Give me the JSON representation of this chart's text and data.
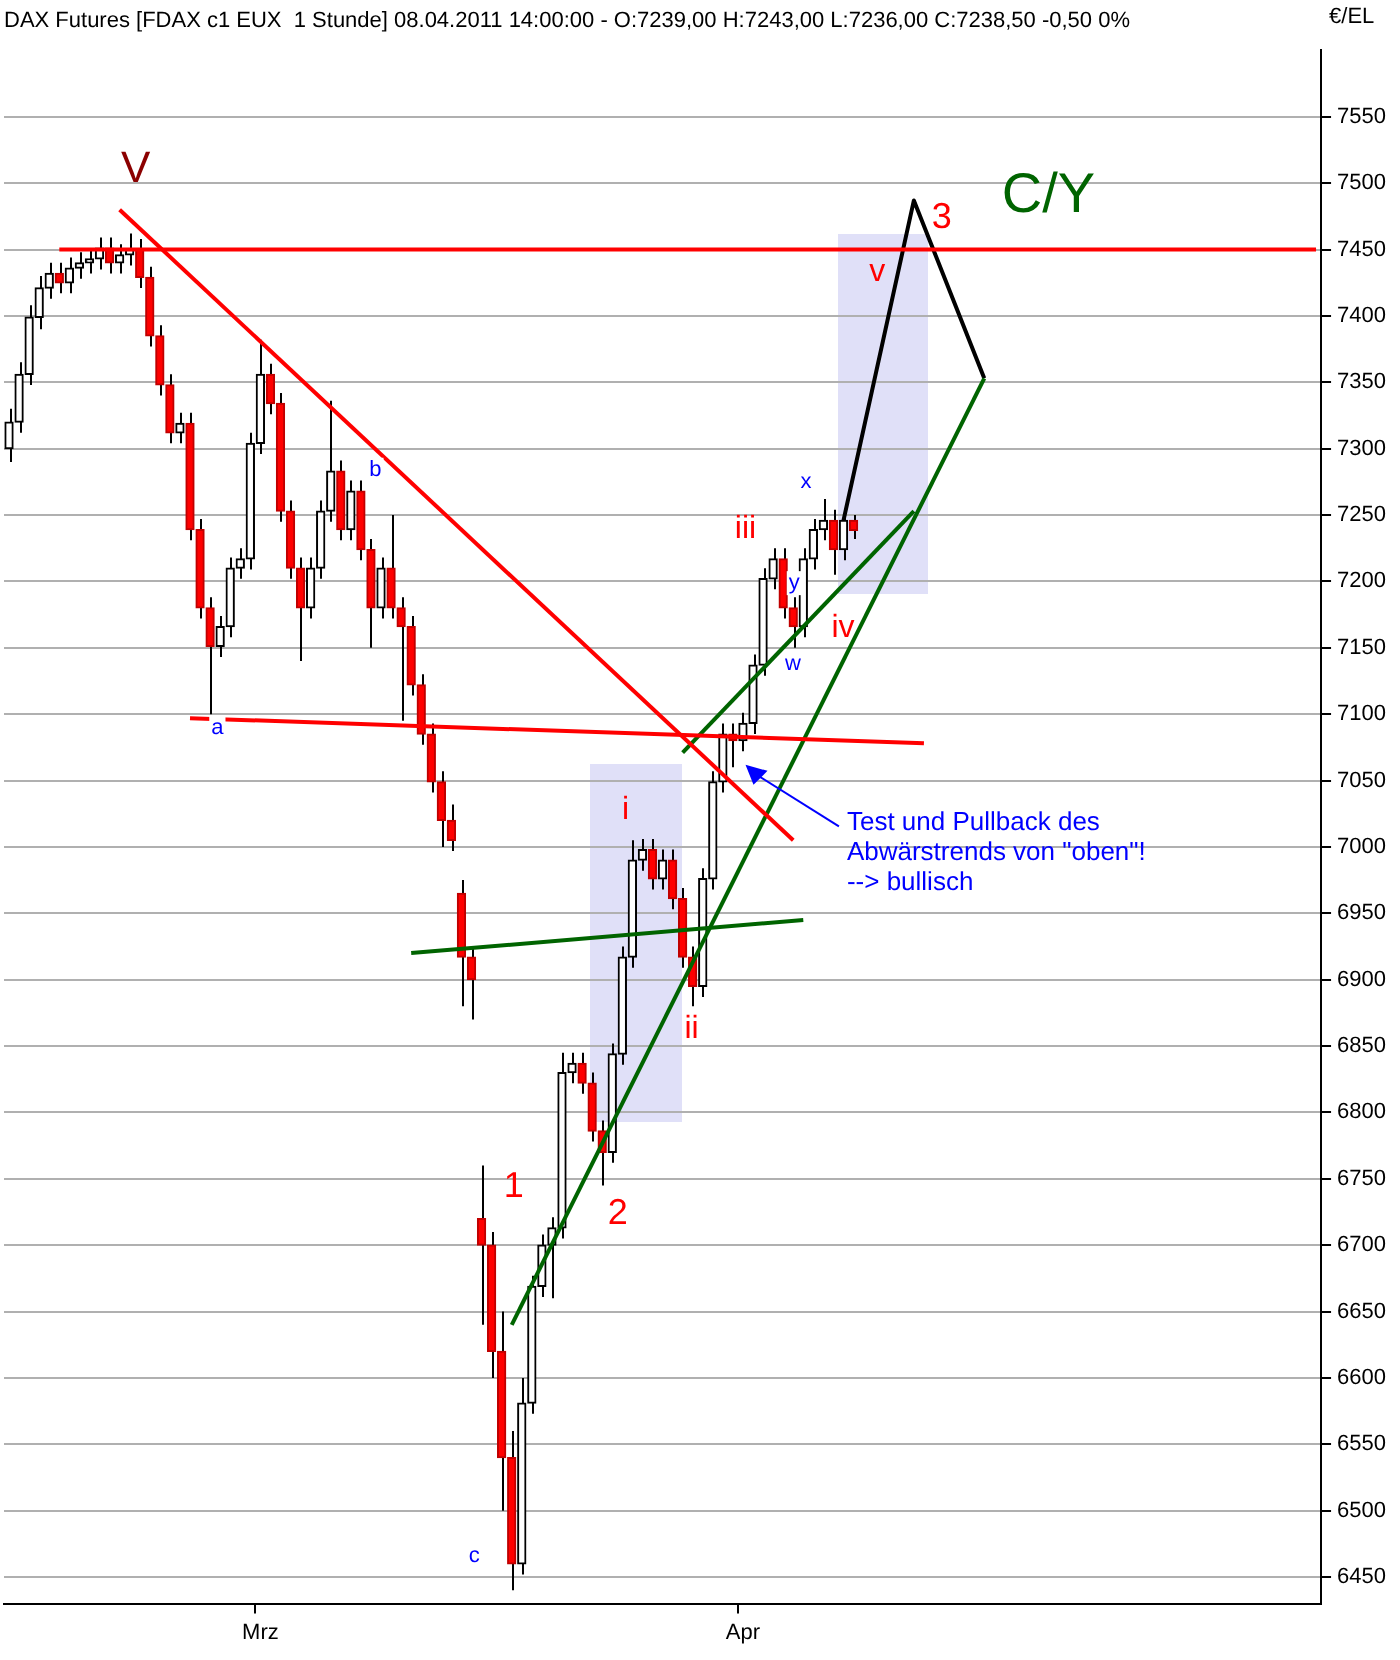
{
  "chart_data": {
    "type": "candlestick",
    "title": "DAX Futures [FDAX c1 EUX  1 Stunde] 08.04.2011 14:00:00 - O:7239,00 H:7243,00 L:7236,00 C:7238,50 -0,50 0%",
    "ylabel": "€/EL",
    "categories": [
      null,
      null,
      null,
      null,
      null,
      null,
      null,
      null,
      null,
      null,
      null,
      null,
      null,
      null,
      null,
      null,
      null,
      null,
      null,
      null,
      null,
      null,
      null,
      null,
      null,
      "Mrz",
      null,
      null,
      null,
      null,
      null,
      null,
      null,
      null,
      null,
      null,
      null,
      null,
      null,
      null,
      null,
      null,
      null,
      null,
      null,
      null,
      null,
      null,
      null,
      null,
      null,
      null,
      null,
      null,
      null,
      null,
      null,
      null,
      null,
      null,
      null,
      null,
      null,
      null,
      null,
      null,
      null,
      null,
      null,
      null,
      null,
      null,
      null,
      "Apr",
      null,
      null,
      null,
      null,
      null,
      null,
      null,
      null,
      null,
      null,
      null,
      null,
      null,
      null,
      null,
      null,
      null,
      null,
      null,
      null,
      null,
      null,
      null,
      null,
      null,
      null,
      null,
      null,
      null,
      null,
      null,
      null,
      null,
      null,
      null,
      null,
      null,
      null,
      null,
      null,
      null,
      null,
      null,
      null,
      null,
      null,
      null,
      null,
      null,
      null,
      null,
      null,
      null,
      null,
      null,
      null,
      null
    ],
    "ohlc": [
      [
        7300,
        7330,
        7290,
        7320
      ],
      [
        7320,
        7365,
        7312,
        7356
      ],
      [
        7356,
        7408,
        7348,
        7399
      ],
      [
        7399,
        7430,
        7390,
        7421
      ],
      [
        7421,
        7440,
        7413,
        7432
      ],
      [
        7432,
        7440,
        7417,
        7425
      ],
      [
        7425,
        7444,
        7417,
        7436
      ],
      [
        7436,
        7448,
        7428,
        7440
      ],
      [
        7440,
        7451,
        7432,
        7443
      ],
      [
        7443,
        7459,
        7435,
        7451
      ],
      [
        7451,
        7459,
        7432,
        7440
      ],
      [
        7440,
        7454,
        7432,
        7446
      ],
      [
        7446,
        7462,
        7438,
        7450
      ],
      [
        7450,
        7458,
        7421,
        7429
      ],
      [
        7429,
        7437,
        7377,
        7385
      ],
      [
        7385,
        7393,
        7340,
        7348
      ],
      [
        7348,
        7356,
        7304,
        7312
      ],
      [
        7312,
        7327,
        7304,
        7319
      ],
      [
        7319,
        7327,
        7231,
        7239
      ],
      [
        7239,
        7247,
        7172,
        7180
      ],
      [
        7180,
        7188,
        7100,
        7151
      ],
      [
        7151,
        7174,
        7143,
        7166
      ],
      [
        7166,
        7218,
        7158,
        7210
      ],
      [
        7210,
        7225,
        7202,
        7217
      ],
      [
        7217,
        7312,
        7209,
        7304
      ],
      [
        7304,
        7382,
        7296,
        7356
      ],
      [
        7356,
        7364,
        7326,
        7334
      ],
      [
        7334,
        7342,
        7245,
        7253
      ],
      [
        7253,
        7261,
        7202,
        7210
      ],
      [
        7210,
        7218,
        7140,
        7180
      ],
      [
        7180,
        7218,
        7172,
        7210
      ],
      [
        7210,
        7261,
        7202,
        7253
      ],
      [
        7253,
        7336,
        7245,
        7283
      ],
      [
        7283,
        7291,
        7231,
        7239
      ],
      [
        7239,
        7276,
        7231,
        7268
      ],
      [
        7268,
        7276,
        7216,
        7224
      ],
      [
        7224,
        7232,
        7150,
        7180
      ],
      [
        7180,
        7218,
        7172,
        7210
      ],
      [
        7210,
        7250,
        7172,
        7180
      ],
      [
        7180,
        7188,
        7095,
        7166
      ],
      [
        7166,
        7174,
        7114,
        7122
      ],
      [
        7122,
        7130,
        7077,
        7085
      ],
      [
        7085,
        7093,
        7041,
        7049
      ],
      [
        7049,
        7057,
        7000,
        7020
      ],
      [
        7020,
        7032,
        6997,
        7005
      ],
      [
        6965,
        6975,
        6880,
        6917
      ],
      [
        6917,
        6925,
        6870,
        6900
      ],
      [
        6720,
        6760,
        6640,
        6700
      ],
      [
        6700,
        6710,
        6600,
        6620
      ],
      [
        6620,
        6650,
        6500,
        6540
      ],
      [
        6540,
        6560,
        6440,
        6460
      ],
      [
        6460,
        6600,
        6452,
        6581
      ],
      [
        6581,
        6677,
        6573,
        6669
      ],
      [
        6669,
        6708,
        6661,
        6700
      ],
      [
        6700,
        6721,
        6660,
        6713
      ],
      [
        6713,
        6845,
        6705,
        6830
      ],
      [
        6830,
        6845,
        6822,
        6837
      ],
      [
        6837,
        6845,
        6814,
        6822
      ],
      [
        6822,
        6830,
        6778,
        6786
      ],
      [
        6786,
        6794,
        6745,
        6770
      ],
      [
        6770,
        6852,
        6762,
        6844
      ],
      [
        6844,
        6925,
        6836,
        6917
      ],
      [
        6917,
        7005,
        6909,
        6990
      ],
      [
        6990,
        7006,
        6982,
        6998
      ],
      [
        6998,
        7006,
        6968,
        6976
      ],
      [
        6976,
        6998,
        6968,
        6990
      ],
      [
        6990,
        6998,
        6953,
        6961
      ],
      [
        6961,
        6969,
        6909,
        6917
      ],
      [
        6917,
        6925,
        6880,
        6895
      ],
      [
        6895,
        6984,
        6887,
        6976
      ],
      [
        6976,
        7057,
        6968,
        7049
      ],
      [
        7049,
        7093,
        7041,
        7085
      ],
      [
        7085,
        7093,
        7060,
        7080
      ],
      [
        7080,
        7101,
        7072,
        7093
      ],
      [
        7093,
        7145,
        7085,
        7137
      ],
      [
        7137,
        7210,
        7129,
        7202
      ],
      [
        7202,
        7225,
        7194,
        7217
      ],
      [
        7217,
        7225,
        7172,
        7180
      ],
      [
        7180,
        7188,
        7150,
        7166
      ],
      [
        7166,
        7225,
        7158,
        7217
      ],
      [
        7217,
        7247,
        7209,
        7239
      ],
      [
        7239,
        7262,
        7231,
        7246
      ],
      [
        7246,
        7254,
        7205,
        7224
      ],
      [
        7224,
        7254,
        7216,
        7246
      ],
      [
        7246,
        7250,
        7232,
        7238.5
      ],
      null,
      null,
      null,
      null,
      null,
      null,
      null,
      null,
      null,
      null,
      null,
      null,
      null,
      null,
      null,
      null,
      null,
      null,
      null,
      null,
      null,
      null,
      null,
      null,
      null,
      null,
      null,
      null,
      null,
      null,
      null,
      null,
      null,
      null,
      null,
      null,
      null,
      null,
      null,
      null,
      null,
      null,
      null,
      null,
      null,
      null
    ],
    "series": [
      {
        "type": "line",
        "color": "#ff0000",
        "values": [
          null,
          null,
          null,
          null,
          null,
          7450,
          null,
          null,
          null,
          null,
          null,
          null,
          null,
          null,
          null,
          null,
          null,
          null,
          null,
          null,
          null,
          null,
          null,
          null,
          null,
          null,
          null,
          null,
          null,
          null,
          null,
          null,
          null,
          null,
          null,
          null,
          null,
          null,
          null,
          null,
          null,
          null,
          null,
          null,
          null,
          null,
          null,
          null,
          null,
          null,
          null,
          null,
          null,
          null,
          null,
          null,
          null,
          null,
          null,
          null,
          null,
          null,
          null,
          null,
          null,
          null,
          null,
          null,
          null,
          null,
          null,
          null,
          null,
          null,
          null,
          null,
          null,
          null,
          null,
          null,
          null,
          null,
          null,
          null,
          null,
          null,
          null,
          null,
          null,
          null,
          null,
          null,
          null,
          null,
          null,
          null,
          null,
          null,
          null,
          null,
          null,
          null,
          null,
          null,
          null,
          null,
          null,
          null,
          null,
          null,
          null,
          null,
          null,
          null,
          null,
          null,
          null,
          null,
          null,
          null,
          null,
          null,
          null,
          null,
          null,
          null,
          null,
          null,
          null,
          null,
          7450
        ]
      },
      {
        "type": "line",
        "color": "#ff0000",
        "values": [
          null,
          null,
          null,
          null,
          null,
          null,
          null,
          null,
          null,
          null,
          null,
          7480,
          null,
          null,
          null,
          null,
          null,
          null,
          null,
          null,
          null,
          null,
          null,
          null,
          null,
          null,
          null,
          null,
          null,
          null,
          null,
          null,
          null,
          null,
          null,
          null,
          null,
          null,
          null,
          null,
          null,
          null,
          null,
          null,
          null,
          null,
          null,
          null,
          null,
          null,
          null,
          null,
          null,
          null,
          null,
          null,
          null,
          null,
          null,
          null,
          null,
          null,
          null,
          null,
          null,
          null,
          null,
          null,
          null,
          null,
          null,
          null,
          null,
          null,
          null,
          null,
          null,
          null,
          7005,
          null,
          null,
          null,
          null,
          null,
          null,
          null,
          null,
          null,
          null,
          null,
          null,
          null,
          null,
          null,
          null,
          null,
          null,
          null,
          null,
          null,
          null,
          null,
          null,
          null,
          null,
          null,
          null,
          null,
          null,
          null,
          null,
          null,
          null,
          null,
          null,
          null,
          null,
          null,
          null,
          null,
          null,
          null,
          null,
          null,
          null,
          null,
          null,
          null,
          null,
          null,
          null
        ]
      },
      {
        "type": "line",
        "color": "#ff0000",
        "values": [
          null,
          null,
          null,
          null,
          null,
          null,
          null,
          null,
          null,
          null,
          null,
          null,
          null,
          null,
          null,
          null,
          null,
          null,
          7097,
          null,
          null,
          null,
          null,
          null,
          null,
          null,
          null,
          null,
          null,
          null,
          null,
          null,
          null,
          null,
          null,
          null,
          null,
          null,
          null,
          null,
          null,
          null,
          null,
          null,
          null,
          null,
          null,
          null,
          null,
          null,
          null,
          null,
          null,
          null,
          null,
          null,
          null,
          null,
          null,
          null,
          null,
          null,
          null,
          null,
          null,
          null,
          null,
          null,
          null,
          null,
          null,
          null,
          null,
          null,
          null,
          null,
          null,
          null,
          null,
          null,
          null,
          null,
          null,
          null,
          null,
          null,
          null,
          null,
          null,
          null,
          null,
          7078,
          null,
          null,
          null,
          null,
          null,
          null,
          null,
          null,
          null,
          null,
          null,
          null,
          null,
          null,
          null,
          null,
          null,
          null,
          null,
          null,
          null,
          null,
          null,
          null,
          null,
          null,
          null,
          null,
          null,
          null,
          null,
          null,
          null,
          null,
          null,
          null,
          null,
          null,
          null
        ]
      },
      {
        "type": "line",
        "color": "#006400",
        "values": [
          null,
          null,
          null,
          null,
          null,
          null,
          null,
          null,
          null,
          null,
          null,
          null,
          null,
          null,
          null,
          null,
          null,
          null,
          null,
          null,
          null,
          null,
          null,
          null,
          null,
          null,
          null,
          null,
          null,
          null,
          null,
          null,
          null,
          null,
          null,
          null,
          null,
          null,
          null,
          null,
          6920,
          null,
          null,
          null,
          null,
          null,
          null,
          null,
          null,
          null,
          null,
          null,
          null,
          null,
          null,
          null,
          null,
          null,
          null,
          null,
          null,
          null,
          null,
          null,
          null,
          null,
          null,
          null,
          null,
          null,
          null,
          null,
          null,
          null,
          null,
          null,
          null,
          null,
          null,
          6945,
          null,
          null,
          null,
          null,
          null,
          null,
          null,
          null,
          null,
          null,
          null,
          null,
          null,
          null,
          null,
          null,
          null,
          null,
          null,
          null,
          null,
          null,
          null,
          null,
          null,
          null,
          null,
          null,
          null,
          null,
          null,
          null,
          null,
          null,
          null,
          null,
          null,
          null,
          null,
          null,
          null,
          null,
          null,
          null,
          null,
          null,
          null,
          null,
          null,
          null,
          null
        ]
      },
      {
        "type": "line",
        "color": "#006400",
        "values": [
          null,
          null,
          null,
          null,
          null,
          null,
          null,
          null,
          null,
          null,
          null,
          null,
          null,
          null,
          null,
          null,
          null,
          null,
          null,
          null,
          null,
          null,
          null,
          null,
          null,
          null,
          null,
          null,
          null,
          null,
          null,
          null,
          null,
          null,
          null,
          null,
          null,
          null,
          null,
          null,
          null,
          null,
          null,
          null,
          null,
          null,
          null,
          null,
          null,
          null,
          6640,
          null,
          null,
          null,
          null,
          null,
          null,
          null,
          null,
          null,
          null,
          null,
          null,
          null,
          null,
          null,
          null,
          null,
          null,
          null,
          null,
          null,
          null,
          null,
          null,
          null,
          null,
          null,
          null,
          null,
          null,
          null,
          null,
          null,
          null,
          null,
          null,
          null,
          null,
          null,
          null,
          null,
          null,
          null,
          null,
          null,
          null,
          7353,
          null,
          null,
          null,
          null,
          null,
          null,
          null,
          null,
          null,
          null,
          null,
          null,
          null,
          null,
          null,
          null,
          null,
          null,
          null,
          null,
          null,
          null,
          null,
          null,
          null,
          null,
          null,
          null,
          null,
          null,
          null,
          null,
          null
        ]
      },
      {
        "type": "line",
        "color": "#006400",
        "values": [
          null,
          null,
          null,
          null,
          null,
          null,
          null,
          null,
          null,
          null,
          null,
          null,
          null,
          null,
          null,
          null,
          null,
          null,
          null,
          null,
          null,
          null,
          null,
          null,
          null,
          null,
          null,
          null,
          null,
          null,
          null,
          null,
          null,
          null,
          null,
          null,
          null,
          null,
          null,
          null,
          null,
          null,
          null,
          null,
          null,
          null,
          null,
          null,
          null,
          null,
          null,
          null,
          null,
          null,
          null,
          null,
          null,
          null,
          null,
          null,
          null,
          null,
          null,
          null,
          null,
          null,
          null,
          7071,
          null,
          null,
          null,
          null,
          null,
          null,
          null,
          null,
          null,
          null,
          null,
          null,
          null,
          null,
          null,
          null,
          null,
          null,
          null,
          null,
          null,
          null,
          7253,
          null,
          null,
          null,
          null,
          null,
          null,
          null,
          null,
          null,
          null,
          null,
          null,
          null,
          null,
          null,
          null,
          null,
          null,
          null,
          null,
          null,
          null,
          null,
          null,
          null,
          null,
          null,
          null,
          null,
          null,
          null,
          null,
          null,
          null,
          null,
          null,
          null,
          null,
          null,
          null
        ]
      },
      {
        "type": "line",
        "color": "#000000",
        "values": [
          null,
          null,
          null,
          null,
          null,
          null,
          null,
          null,
          null,
          null,
          null,
          null,
          null,
          null,
          null,
          null,
          null,
          null,
          null,
          null,
          null,
          null,
          null,
          null,
          null,
          null,
          null,
          null,
          null,
          null,
          null,
          null,
          null,
          null,
          null,
          null,
          null,
          null,
          null,
          null,
          null,
          null,
          null,
          null,
          null,
          null,
          null,
          null,
          null,
          null,
          null,
          null,
          null,
          null,
          null,
          null,
          null,
          null,
          null,
          null,
          null,
          null,
          null,
          null,
          null,
          null,
          null,
          null,
          null,
          null,
          null,
          null,
          null,
          null,
          null,
          null,
          null,
          null,
          null,
          null,
          null,
          null,
          null,
          7246,
          null,
          null,
          null,
          null,
          null,
          null,
          7487,
          null,
          null,
          null,
          null,
          null,
          null,
          7353,
          null,
          null,
          null,
          null,
          null,
          null,
          null,
          null,
          null,
          null,
          null,
          null,
          null,
          null,
          null,
          null,
          null,
          null,
          null,
          null,
          null,
          null,
          null,
          null,
          null,
          null,
          null,
          null,
          null,
          null,
          null,
          null,
          null
        ]
      }
    ],
    "annotations": [
      "V",
      "C/Y",
      "3",
      "v",
      "x",
      "iii",
      "y",
      "iv",
      "w",
      "i",
      "ii",
      "1",
      "2",
      "a",
      "b",
      "c",
      "Test und Pullback des\nAbwärstrends von \"oben\"!\n--> bullisch"
    ],
    "ylim": [
      6430,
      7600
    ],
    "yticks": [
      6450,
      6500,
      6550,
      6600,
      6650,
      6700,
      6750,
      6800,
      6850,
      6900,
      6950,
      7000,
      7050,
      7100,
      7150,
      7200,
      7250,
      7300,
      7350,
      7400,
      7450,
      7500,
      7550
    ],
    "grid": "y",
    "legend": false,
    "marker": "none",
    "line_style": "solid"
  }
}
